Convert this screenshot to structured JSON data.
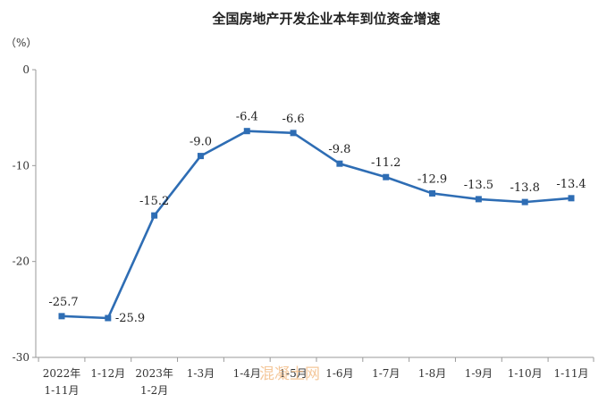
{
  "chart_data": {
    "type": "line",
    "title": "全国房地产开发企业本年到位资金增速",
    "ylabel": "（%）",
    "xlabel": "",
    "ylim": [
      -30,
      0
    ],
    "yticks": [
      0,
      -10,
      -20,
      -30
    ],
    "grid": false,
    "categories": [
      [
        "2022年",
        "1-11月"
      ],
      [
        "1-12月"
      ],
      [
        "2023年",
        "1-2月"
      ],
      [
        "1-3月"
      ],
      [
        "1-4月"
      ],
      [
        "1-5月"
      ],
      [
        "1-6月"
      ],
      [
        "1-7月"
      ],
      [
        "1-8月"
      ],
      [
        "1-9月"
      ],
      [
        "1-10月"
      ],
      [
        "1-11月"
      ]
    ],
    "series": [
      {
        "values": [
          -25.7,
          -25.9,
          -15.2,
          -9.0,
          -6.4,
          -6.6,
          -9.8,
          -11.2,
          -12.9,
          -13.5,
          -13.8,
          -13.4
        ],
        "labels": [
          "-25.7",
          "-25.9",
          "-15.2",
          "-9.0",
          "-6.4",
          "-6.6",
          "-9.8",
          "-11.2",
          "-12.9",
          "-13.5",
          "-13.8",
          "-13.4"
        ],
        "color": "#2e6db4"
      }
    ]
  },
  "watermark": {
    "text": "混凝土网"
  }
}
